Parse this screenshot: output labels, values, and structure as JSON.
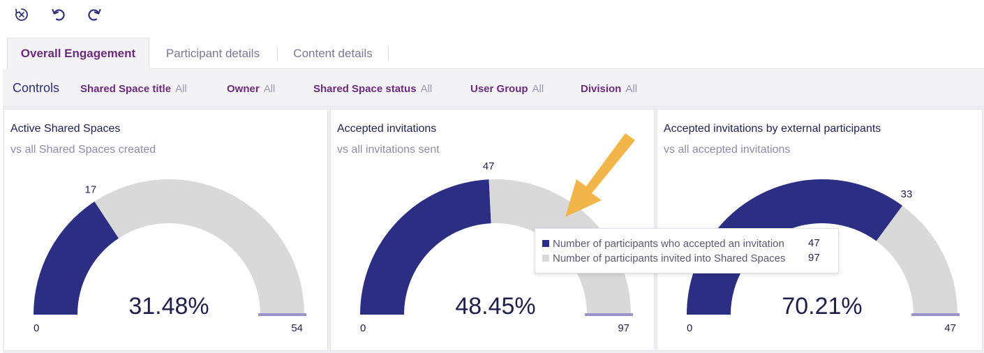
{
  "toolbar": {
    "reset_icon": "reset-icon",
    "undo_icon": "undo-icon",
    "redo_icon": "redo-icon"
  },
  "tabs": [
    {
      "label": "Overall Engagement",
      "active": true
    },
    {
      "label": "Participant details",
      "active": false
    },
    {
      "label": "Content details",
      "active": false
    }
  ],
  "controls": {
    "title": "Controls",
    "items": [
      {
        "label": "Shared Space title",
        "value": "All"
      },
      {
        "label": "Owner",
        "value": "All"
      },
      {
        "label": "Shared Space status",
        "value": "All"
      },
      {
        "label": "User Group",
        "value": "All"
      },
      {
        "label": "Division",
        "value": "All"
      }
    ]
  },
  "colors": {
    "filled": "#2c2e83",
    "empty": "#d9d9d9",
    "base_marker": "#9a94c8",
    "arrow": "#f2b54a"
  },
  "chart_data": [
    {
      "type": "gauge",
      "title": "Active Shared Spaces",
      "subtitle": "vs all Shared Spaces created",
      "value": 17,
      "max": 54,
      "min": 0,
      "percent_label": "31.48%",
      "value_label": "17",
      "min_label": "0",
      "max_label": "54"
    },
    {
      "type": "gauge",
      "title": "Accepted invitations",
      "subtitle": "vs all invitations sent",
      "value": 47,
      "max": 97,
      "min": 0,
      "percent_label": "48.45%",
      "value_label": "47",
      "min_label": "0",
      "max_label": "97"
    },
    {
      "type": "gauge",
      "title": "Accepted invitations by external participants",
      "subtitle": "vs all accepted invitations",
      "value": 33,
      "max": 47,
      "min": 0,
      "percent_label": "70.21%",
      "value_label": "33",
      "min_label": "0",
      "max_label": "47"
    }
  ],
  "tooltip": {
    "rows": [
      {
        "label": "Number of participants who accepted an invitation",
        "value": "47",
        "color": "#2c2e83"
      },
      {
        "label": "Number of participants invited into Shared Spaces",
        "value": "97",
        "color": "#d9d9d9"
      }
    ]
  }
}
